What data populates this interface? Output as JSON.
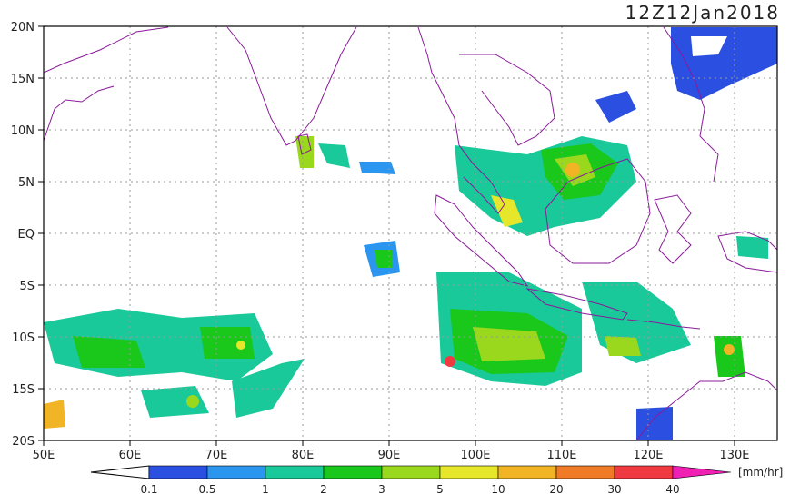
{
  "header": {
    "timestamp": "12Z12Jan2018"
  },
  "map": {
    "lat_labels": [
      "20N",
      "15N",
      "10N",
      "5N",
      "EQ",
      "5S",
      "10S",
      "15S",
      "20S"
    ],
    "lon_labels": [
      "50E",
      "60E",
      "70E",
      "80E",
      "90E",
      "100E",
      "110E",
      "120E",
      "130E"
    ],
    "lat_range": [
      -20,
      20
    ],
    "lon_range": [
      50,
      135
    ],
    "gridlines": "dotted",
    "coastline_color": "#8a1a9a"
  },
  "colorbar": {
    "unit": "[mm/hr]",
    "tick_labels": [
      "0.1",
      "0.5",
      "1",
      "2",
      "3",
      "5",
      "10",
      "20",
      "30",
      "40"
    ],
    "colors": [
      "#2b4fe0",
      "#2a96f0",
      "#19c99a",
      "#19c81a",
      "#9ad81e",
      "#e6e62a",
      "#f0b425",
      "#f07a25",
      "#f03a42",
      "#f020b4"
    ]
  }
}
